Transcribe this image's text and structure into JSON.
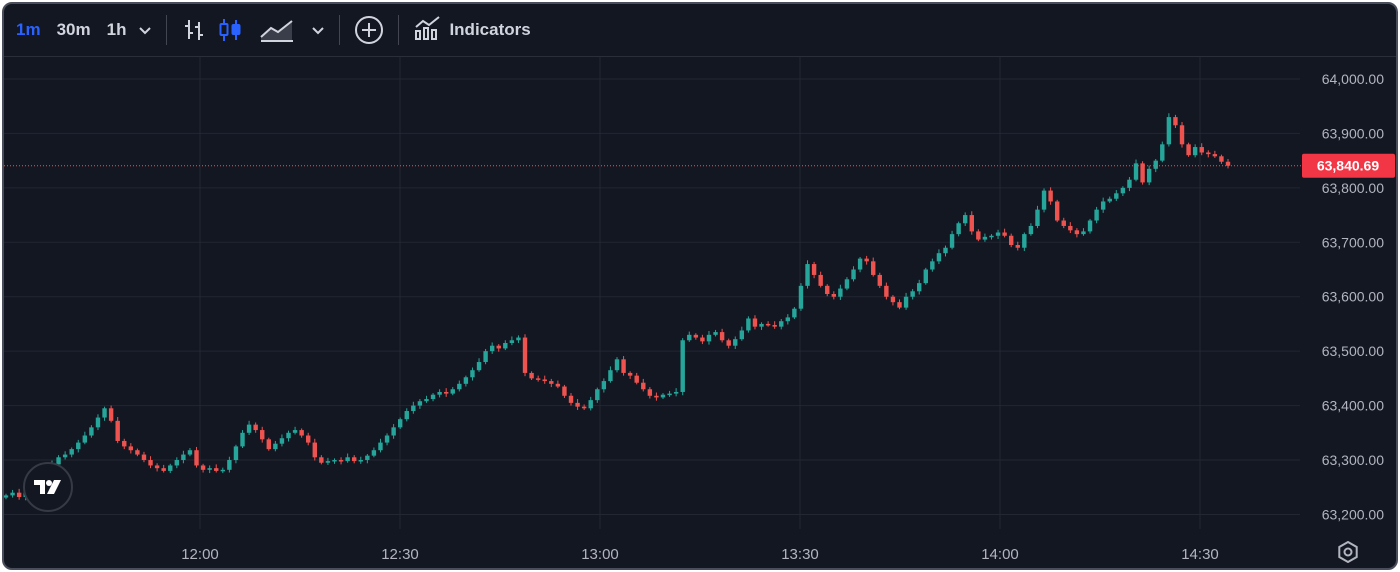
{
  "toolbar": {
    "timeframes": [
      "1m",
      "30m",
      "1h"
    ],
    "active_timeframe": "1m",
    "indicators_label": "Indicators"
  },
  "chart_data": {
    "type": "candlestick",
    "title": "",
    "x_ticks": [
      "12:00",
      "12:30",
      "13:00",
      "13:30",
      "14:00",
      "14:30"
    ],
    "y_ticks": [
      "64,000.00",
      "63,900.00",
      "63,800.00",
      "63,700.00",
      "63,600.00",
      "63,500.00",
      "63,400.00",
      "63,300.00",
      "63,200.00"
    ],
    "ylim": [
      63180,
      64030
    ],
    "last_price": 63840.69,
    "last_price_label": "63,840.69",
    "grid": true,
    "colors": {
      "up": "#26a69a",
      "down": "#ef5350",
      "background": "#131722",
      "grid": "#232733",
      "text": "#b2b5be"
    },
    "closes": [
      63235,
      63240,
      63232,
      63245,
      63258,
      63275,
      63282,
      63292,
      63305,
      63310,
      63320,
      63332,
      63345,
      63360,
      63378,
      63395,
      63372,
      63335,
      63325,
      63318,
      63310,
      63300,
      63290,
      63285,
      63280,
      63290,
      63300,
      63310,
      63318,
      63290,
      63282,
      63285,
      63280,
      63282,
      63300,
      63325,
      63350,
      63365,
      63355,
      63338,
      63320,
      63330,
      63340,
      63350,
      63355,
      63345,
      63332,
      63305,
      63295,
      63298,
      63300,
      63298,
      63305,
      63298,
      63300,
      63308,
      63318,
      63332,
      63345,
      63360,
      63375,
      63390,
      63400,
      63408,
      63412,
      63420,
      63425,
      63422,
      63430,
      63440,
      63452,
      63465,
      63480,
      63500,
      63510,
      63505,
      63515,
      63520,
      63525,
      63460,
      63450,
      63448,
      63445,
      63440,
      63435,
      63418,
      63405,
      63398,
      63395,
      63410,
      63430,
      63445,
      63465,
      63485,
      63460,
      63455,
      63442,
      63430,
      63418,
      63415,
      63420,
      63422,
      63425,
      63520,
      63530,
      63525,
      63518,
      63530,
      63535,
      63520,
      63510,
      63522,
      63538,
      63560,
      63545,
      63550,
      63548,
      63545,
      63555,
      63562,
      63578,
      63620,
      63660,
      63640,
      63620,
      63605,
      63600,
      63615,
      63632,
      63650,
      63670,
      63665,
      63640,
      63620,
      63600,
      63590,
      63580,
      63600,
      63610,
      63625,
      63650,
      63665,
      63680,
      63690,
      63715,
      63735,
      63750,
      63720,
      63705,
      63710,
      63712,
      63718,
      63712,
      63695,
      63690,
      63715,
      63730,
      63760,
      63795,
      63775,
      63740,
      63730,
      63722,
      63715,
      63720,
      63740,
      63760,
      63775,
      63780,
      63790,
      63800,
      63815,
      63845,
      63810,
      63835,
      63850,
      63880,
      63930,
      63915,
      63880,
      63860,
      63875,
      63865,
      63862,
      63858,
      63848,
      63840.69
    ]
  }
}
